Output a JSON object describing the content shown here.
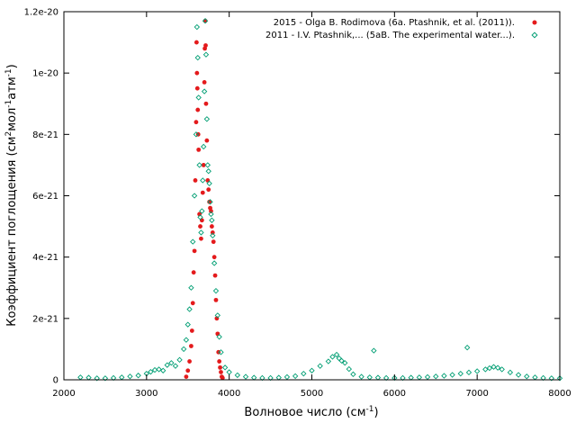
{
  "chart_data": {
    "type": "scatter",
    "xlabel_main": "Волновое число (см",
    "xlabel_sup": "-1",
    "xlabel_end": ")",
    "ylabel_main": "Коэффициент поглощения (см",
    "ylabel_sup1": "2",
    "ylabel_mid": "мол",
    "ylabel_sup2": "-1",
    "ylabel_mid2": "атм",
    "ylabel_sup3": "-1",
    "ylabel_end": ")",
    "xlim": [
      2000,
      8000
    ],
    "ylim": [
      0,
      1.2e-20
    ],
    "x_ticks": [
      2000,
      3000,
      4000,
      5000,
      6000,
      7000,
      8000
    ],
    "x_tick_labels": [
      "2000",
      "3000",
      "4000",
      "5000",
      "6000",
      "7000",
      "8000"
    ],
    "y_ticks": [
      0,
      2e-21,
      4e-21,
      6e-21,
      8e-21,
      1e-20,
      1.2e-20
    ],
    "y_tick_labels": [
      "0",
      "2e-21",
      "4e-21",
      "6e-21",
      "8e-21",
      "1e-20",
      "1.2e-20"
    ],
    "grid": false,
    "legend_position": "top-right",
    "series": [
      {
        "name": "2015 - Olga B. Rodimova (6a. Ptashnik, et al. (2011)).",
        "color": "#e41a1c",
        "marker": "filled-circle",
        "x": [
          3480,
          3500,
          3520,
          3540,
          3550,
          3560,
          3570,
          3580,
          3590,
          3600,
          3605,
          3610,
          3615,
          3620,
          3625,
          3630,
          3640,
          3650,
          3660,
          3670,
          3680,
          3690,
          3700,
          3705,
          3710,
          3715,
          3720,
          3730,
          3740,
          3750,
          3760,
          3770,
          3780,
          3790,
          3800,
          3810,
          3820,
          3830,
          3840,
          3850,
          3860,
          3870,
          3880,
          3890,
          3900,
          3910,
          3920
        ],
        "y": [
          1e-22,
          3e-22,
          6e-22,
          1.1e-21,
          1.6e-21,
          2.5e-21,
          3.5e-21,
          4.2e-21,
          6.5e-21,
          8.4e-21,
          1.1e-20,
          1e-20,
          9.5e-21,
          8.8e-21,
          8e-21,
          7.5e-21,
          5.4e-21,
          5e-21,
          4.6e-21,
          5.2e-21,
          6.1e-21,
          7e-21,
          9.7e-21,
          1.08e-20,
          1.17e-20,
          1.09e-20,
          9e-21,
          7.8e-21,
          6.5e-21,
          6.2e-21,
          5.8e-21,
          5.6e-21,
          5.5e-21,
          5e-21,
          4.8e-21,
          4.5e-21,
          4e-21,
          3.4e-21,
          2.6e-21,
          2e-21,
          1.5e-21,
          9e-22,
          6e-22,
          4e-22,
          2.5e-22,
          1e-22,
          6e-23
        ]
      },
      {
        "name": "2011 - I.V. Ptashnik,... (5aB. The experimental water...).",
        "color": "#009e73",
        "marker": "open-diamond",
        "x": [
          2200,
          2300,
          2400,
          2500,
          2600,
          2700,
          2800,
          2900,
          3000,
          3050,
          3100,
          3150,
          3200,
          3250,
          3300,
          3350,
          3400,
          3450,
          3480,
          3500,
          3520,
          3540,
          3560,
          3580,
          3600,
          3610,
          3620,
          3630,
          3640,
          3650,
          3660,
          3670,
          3680,
          3690,
          3700,
          3710,
          3720,
          3730,
          3740,
          3750,
          3760,
          3770,
          3780,
          3790,
          3800,
          3820,
          3840,
          3860,
          3880,
          3900,
          3950,
          4000,
          4100,
          4200,
          4300,
          4400,
          4500,
          4600,
          4700,
          4800,
          4900,
          5000,
          5100,
          5200,
          5250,
          5300,
          5330,
          5360,
          5400,
          5450,
          5500,
          5600,
          5700,
          5750,
          5800,
          5900,
          6000,
          6100,
          6200,
          6300,
          6400,
          6500,
          6600,
          6700,
          6800,
          6880,
          6900,
          7000,
          7100,
          7150,
          7200,
          7250,
          7300,
          7400,
          7500,
          7600,
          7700,
          7800,
          7900,
          8000
        ],
        "y": [
          8e-23,
          7e-23,
          5e-23,
          5e-23,
          6e-23,
          8e-23,
          1.1e-22,
          1.4e-22,
          2e-22,
          2.6e-22,
          3.2e-22,
          3.4e-22,
          3e-22,
          4.8e-22,
          5.5e-22,
          4.5e-22,
          6.5e-22,
          1e-21,
          1.3e-21,
          1.8e-21,
          2.3e-21,
          3e-21,
          4.5e-21,
          6e-21,
          8e-21,
          1.15e-20,
          1.05e-20,
          9.2e-21,
          7e-21,
          5.3e-21,
          4.8e-21,
          5.5e-21,
          6.5e-21,
          7.6e-21,
          9.4e-21,
          1.17e-20,
          1.06e-20,
          8.5e-21,
          7e-21,
          6.8e-21,
          6.4e-21,
          5.8e-21,
          5.4e-21,
          5.2e-21,
          4.7e-21,
          3.8e-21,
          2.9e-21,
          2.1e-21,
          1.4e-21,
          9e-22,
          4e-22,
          2.5e-22,
          1.5e-22,
          1e-22,
          7e-23,
          6e-23,
          6e-23,
          7e-23,
          9e-23,
          1.2e-22,
          2e-22,
          3e-22,
          4.5e-22,
          6e-22,
          7.5e-22,
          8.2e-22,
          7e-22,
          6.2e-22,
          5.5e-22,
          3.5e-22,
          1.8e-22,
          1e-22,
          8e-23,
          9.5e-22,
          7e-23,
          6e-23,
          6e-23,
          6e-23,
          7e-23,
          8e-23,
          9e-23,
          1.1e-22,
          1.3e-22,
          1.6e-22,
          2e-22,
          1.05e-21,
          2.4e-22,
          2.8e-22,
          3.4e-22,
          3.8e-22,
          4.2e-22,
          3.9e-22,
          3.4e-22,
          2.4e-22,
          1.6e-22,
          1.1e-22,
          8e-23,
          6e-23,
          5e-23,
          5e-23
        ]
      }
    ]
  }
}
